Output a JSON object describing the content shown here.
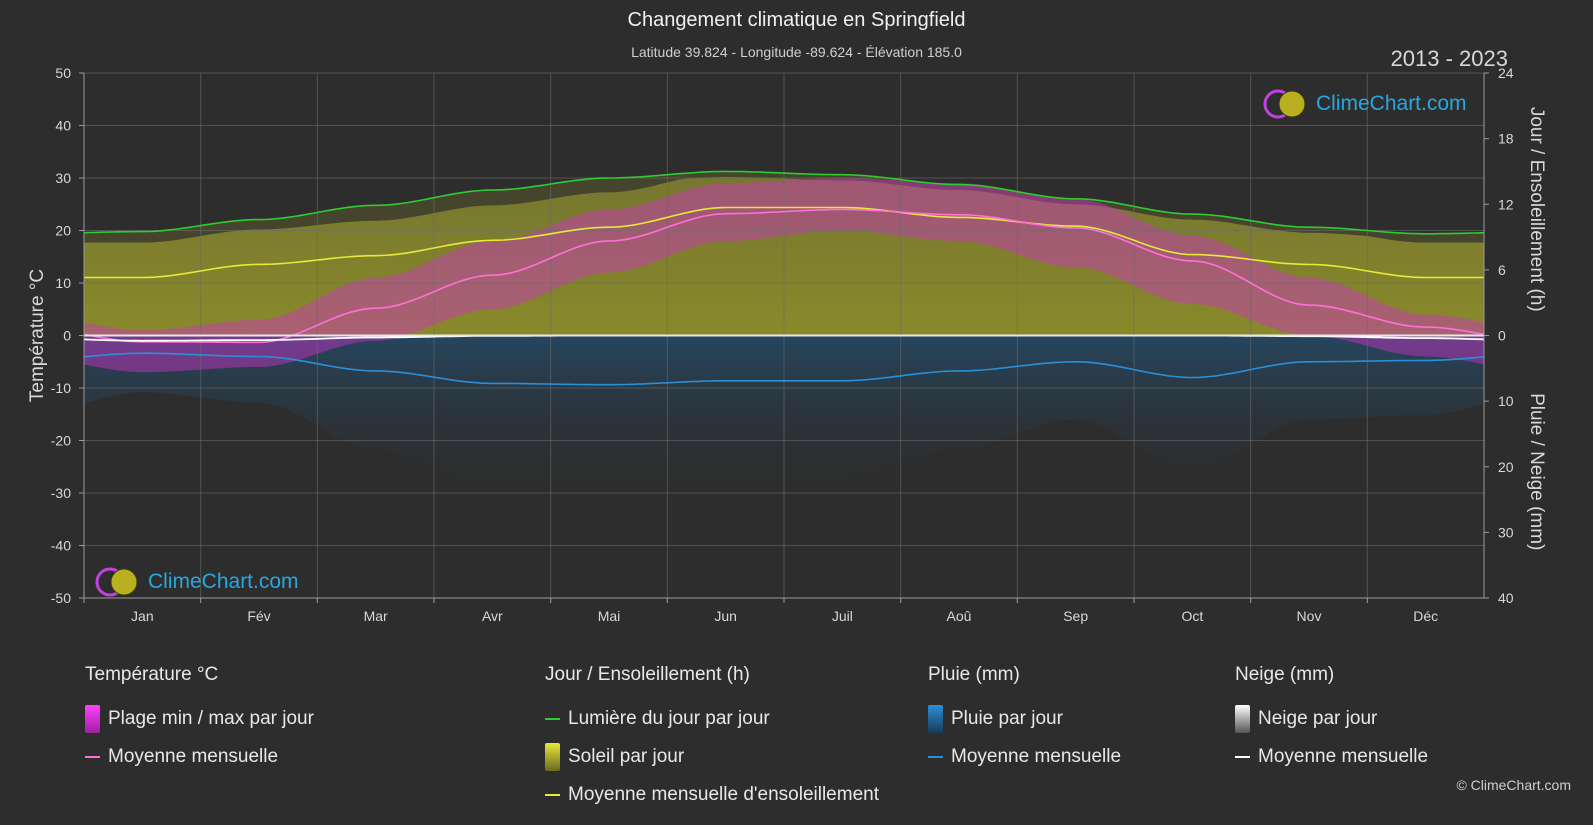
{
  "header": {
    "title": "Changement climatique en Springfield",
    "subtitle": "Latitude 39.824 - Longitude -89.624 - Élévation 185.0",
    "years": "2013 - 2023"
  },
  "logo": {
    "text": "ClimeChart.com"
  },
  "copyright": "© ClimeChart.com",
  "chart_data": {
    "type": "area",
    "categories": [
      "Jan",
      "Fév",
      "Mar",
      "Avr",
      "Mai",
      "Jun",
      "Juil",
      "Aoû",
      "Sep",
      "Oct",
      "Nov",
      "Déc"
    ],
    "y_left": {
      "label": "Température °C",
      "min": -50,
      "max": 50,
      "ticks": [
        "50",
        "40",
        "30",
        "20",
        "10",
        "0",
        "-10",
        "-20",
        "-30",
        "-40",
        "-50"
      ]
    },
    "y_right_top": {
      "label": "Jour / Ensoleillement (h)",
      "min": 0,
      "max": 24,
      "ticks": [
        "24",
        "18",
        "12",
        "6",
        "0"
      ]
    },
    "y_right_bottom": {
      "label": "Pluie / Neige (mm)",
      "min": 0,
      "max": 40,
      "ticks": [
        "10",
        "20",
        "30",
        "40"
      ]
    },
    "grid": true,
    "series": [
      {
        "name": "Lumière du jour par jour",
        "unit": "h",
        "color": "#2ecc2e",
        "values": [
          9.5,
          10.6,
          11.9,
          13.3,
          14.4,
          15.0,
          14.7,
          13.8,
          12.5,
          11.1,
          9.9,
          9.3
        ]
      },
      {
        "name": "Moyenne mensuelle d'ensoleillement",
        "unit": "h",
        "color": "#e8e83a",
        "values": [
          5.3,
          6.5,
          7.3,
          8.7,
          9.9,
          11.7,
          11.7,
          10.8,
          10.0,
          7.4,
          6.5,
          5.3
        ]
      },
      {
        "name": "Moyenne mensuelle",
        "unit": "°C",
        "color": "#ff70d8",
        "values": [
          -1.2,
          -1.3,
          5.2,
          11.5,
          18.0,
          23.2,
          24.0,
          23.0,
          20.5,
          14.2,
          5.8,
          1.6
        ]
      },
      {
        "name": "Pluie moyenne mensuelle",
        "unit": "mm",
        "color": "#2a8fd8",
        "values": [
          2.7,
          3.2,
          5.4,
          7.3,
          7.5,
          6.9,
          6.9,
          5.4,
          4.0,
          6.4,
          4.0,
          3.8
        ]
      },
      {
        "name": "Neige moyenne mensuelle",
        "unit": "mm",
        "color": "#ffffff",
        "values": [
          0.8,
          0.7,
          0.3,
          0.05,
          0,
          0,
          0,
          0,
          0,
          0,
          0.1,
          0.4
        ]
      },
      {
        "name": "Plage min / max par jour",
        "unit": "°C",
        "color": "#d030c8",
        "min": [
          -7,
          -6,
          -1,
          5,
          12,
          18,
          20,
          18,
          13,
          6,
          0,
          -4
        ],
        "max": [
          1,
          3,
          11,
          18,
          24,
          29,
          30,
          29,
          26,
          19,
          11,
          4
        ]
      }
    ]
  },
  "legend": {
    "groups": [
      {
        "title": "Température °C",
        "items": [
          {
            "label": "Plage min / max par jour",
            "kind": "box",
            "color": "#d030c8"
          },
          {
            "label": "Moyenne mensuelle",
            "kind": "line",
            "color": "#ff70d8"
          }
        ]
      },
      {
        "title": "Jour / Ensoleillement (h)",
        "items": [
          {
            "label": "Lumière du jour par jour",
            "kind": "line",
            "color": "#2ecc2e"
          },
          {
            "label": "Soleil par jour",
            "kind": "box",
            "color": "#c8c83a"
          },
          {
            "label": "Moyenne mensuelle d'ensoleillement",
            "kind": "line",
            "color": "#e8e83a"
          }
        ]
      },
      {
        "title": "Pluie (mm)",
        "items": [
          {
            "label": "Pluie par jour",
            "kind": "box",
            "color": "#2a8fd8"
          },
          {
            "label": "Moyenne mensuelle",
            "kind": "line",
            "color": "#2a8fd8"
          }
        ]
      },
      {
        "title": "Neige (mm)",
        "items": [
          {
            "label": "Neige par jour",
            "kind": "box",
            "color": "#dddddd"
          },
          {
            "label": "Moyenne mensuelle",
            "kind": "line",
            "color": "#ffffff"
          }
        ]
      }
    ]
  }
}
